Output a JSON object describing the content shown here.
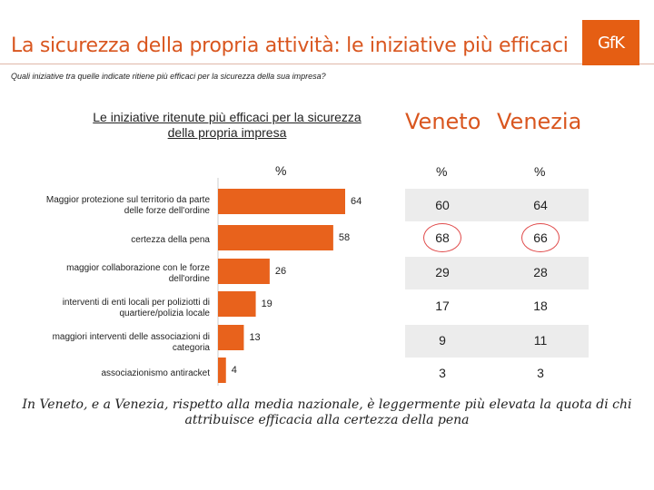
{
  "header": {
    "title": "La sicurezza della propria attività: le iniziative più efficaci",
    "logo_text": "GfK",
    "question": "Quali iniziative tra quelle indicate ritiene più efficaci per la sicurezza della sua impresa?"
  },
  "table": {
    "columns": [
      "Veneto",
      "Venezia"
    ],
    "unit": "%",
    "rows": [
      {
        "veneto": "60",
        "venezia": "64"
      },
      {
        "veneto": "68",
        "venezia": "66"
      },
      {
        "veneto": "29",
        "venezia": "28"
      },
      {
        "veneto": "17",
        "venezia": "18"
      },
      {
        "veneto": "9",
        "venezia": "11"
      },
      {
        "veneto": "3",
        "venezia": "3"
      }
    ]
  },
  "chart_data": {
    "type": "bar",
    "orientation": "horizontal",
    "title": "Le iniziative ritenute più efficaci per la sicurezza della propria impresa",
    "unit": "%",
    "categories": [
      "Maggior protezione sul territorio da parte delle forze dell'ordine",
      "certezza della pena",
      "maggior collaborazione con le forze dell'ordine",
      "interventi di enti locali per poliziotti di quartiere/polizia locale",
      "maggiori interventi delle associazioni di categoria",
      "associazionismo antiracket"
    ],
    "values": [
      64,
      58,
      26,
      19,
      13,
      4
    ],
    "color": "#e8621c",
    "xlim": [
      0,
      64
    ]
  },
  "footer": {
    "text": "In Veneto, e a Venezia, rispetto alla media nazionale, è leggermente più elevata la quota di chi attribuisce efficacia alla certezza della pena"
  }
}
